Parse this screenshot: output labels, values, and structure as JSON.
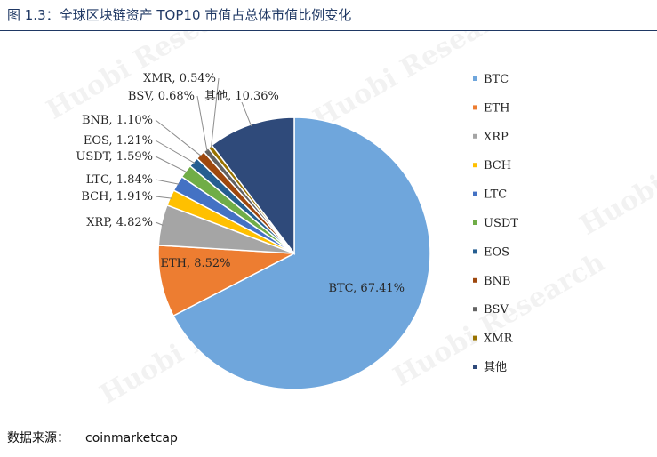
{
  "header": {
    "title": "图 1.3：全球区块链资产 TOP10 市值占总体市值比例变化"
  },
  "source": {
    "label": "数据来源：",
    "value": "coinmarketcap"
  },
  "watermark": {
    "text": "Huobi Research"
  },
  "chart_data": {
    "type": "pie",
    "title": "",
    "unit": "%",
    "legend_position": "right",
    "slices": [
      {
        "name": "BTC",
        "value": 67.41,
        "label": "BTC, 67.41%",
        "color": "#6FA6DC"
      },
      {
        "name": "ETH",
        "value": 8.52,
        "label": "ETH, 8.52%",
        "color": "#ED7D31"
      },
      {
        "name": "XRP",
        "value": 4.82,
        "label": "XRP, 4.82%",
        "color": "#A5A5A5"
      },
      {
        "name": "BCH",
        "value": 1.91,
        "label": "BCH, 1.91%",
        "color": "#FFC000"
      },
      {
        "name": "LTC",
        "value": 1.84,
        "label": "LTC, 1.84%",
        "color": "#4472C4"
      },
      {
        "name": "USDT",
        "value": 1.59,
        "label": "USDT, 1.59%",
        "color": "#70AD47"
      },
      {
        "name": "EOS",
        "value": 1.21,
        "label": "EOS, 1.21%",
        "color": "#255E91"
      },
      {
        "name": "BNB",
        "value": 1.1,
        "label": "BNB, 1.10%",
        "color": "#9E480E"
      },
      {
        "name": "BSV",
        "value": 0.68,
        "label": "BSV, 0.68%",
        "color": "#636363"
      },
      {
        "name": "XMR",
        "value": 0.54,
        "label": "XMR, 0.54%",
        "color": "#997300"
      },
      {
        "name": "其他",
        "value": 10.36,
        "label": "其他, 10.36%",
        "color": "#2F4A7A"
      }
    ]
  }
}
